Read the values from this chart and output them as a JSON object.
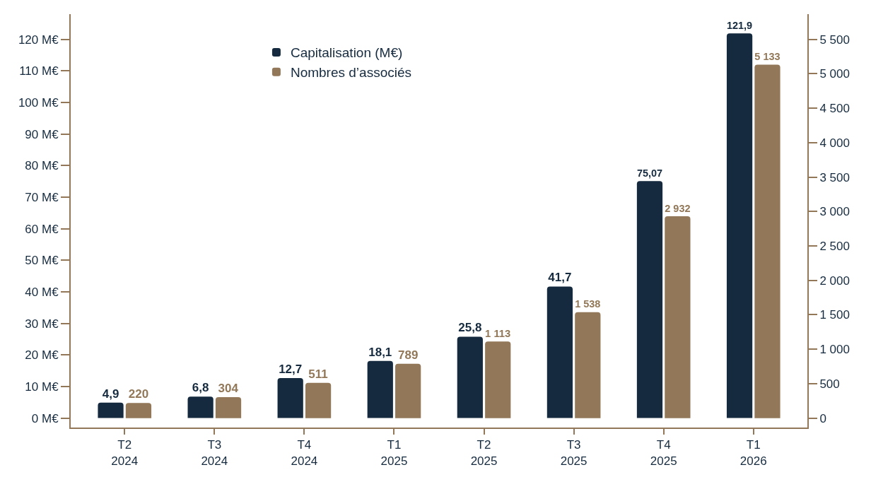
{
  "chart_data": {
    "type": "bar",
    "categories": [
      "T2\n2024",
      "T3\n2024",
      "T4\n2024",
      "T1\n2025",
      "T2\n2025",
      "T3\n2025",
      "T4\n2025",
      "T1\n2026"
    ],
    "series": [
      {
        "name": "Capitalisation (M€)",
        "color": "#152a3e",
        "values": [
          4.9,
          6.8,
          12.7,
          18.1,
          25.8,
          41.7,
          75.07,
          121.9
        ],
        "value_labels": [
          "4,9",
          "6,8",
          "12,7",
          "18,1",
          "25,8",
          "41,7",
          "75,07",
          "121,9"
        ]
      },
      {
        "name": "Nombres d’associés",
        "color": "#927858",
        "axis": "y2",
        "values": [
          220,
          304,
          511,
          789,
          1113,
          1538,
          2932,
          5133
        ],
        "value_labels": [
          "220",
          "304",
          "511",
          "789",
          "1 113",
          "1 538",
          "2 932",
          "5 133"
        ]
      }
    ],
    "ylim": [
      -3,
      128
    ],
    "yticks": [
      {
        "value": 0,
        "label": "0 M€"
      },
      {
        "value": 10,
        "label": "10 M€"
      },
      {
        "value": 20,
        "label": "20 M€"
      },
      {
        "value": 30,
        "label": "30 M€"
      },
      {
        "value": 40,
        "label": "40 M€"
      },
      {
        "value": 50,
        "label": "50 M€"
      },
      {
        "value": 60,
        "label": "60 M€"
      },
      {
        "value": 70,
        "label": "70 M€"
      },
      {
        "value": 80,
        "label": "80 M€"
      },
      {
        "value": 90,
        "label": "90 M€"
      },
      {
        "value": 100,
        "label": "100 M€"
      },
      {
        "value": 110,
        "label": "110 M€"
      },
      {
        "value": 120,
        "label": "120 M€"
      }
    ],
    "y2lim": [
      -137,
      5866
    ],
    "y2ticks": [
      0,
      500,
      {
        "value": 1000,
        "label": "1 000"
      },
      {
        "value": 1500,
        "label": "1 500"
      },
      {
        "value": 2000,
        "label": "2 000"
      },
      {
        "value": 2500,
        "label": "2 500"
      },
      {
        "value": 3000,
        "label": "3 000"
      },
      {
        "value": 3500,
        "label": "3 500"
      },
      {
        "value": 4000,
        "label": "4 000"
      },
      {
        "value": 4500,
        "label": "4 500"
      },
      {
        "value": 5000,
        "label": "5 000"
      },
      {
        "value": 5500,
        "label": "5 500"
      }
    ],
    "grid": false,
    "legend": "top left"
  }
}
